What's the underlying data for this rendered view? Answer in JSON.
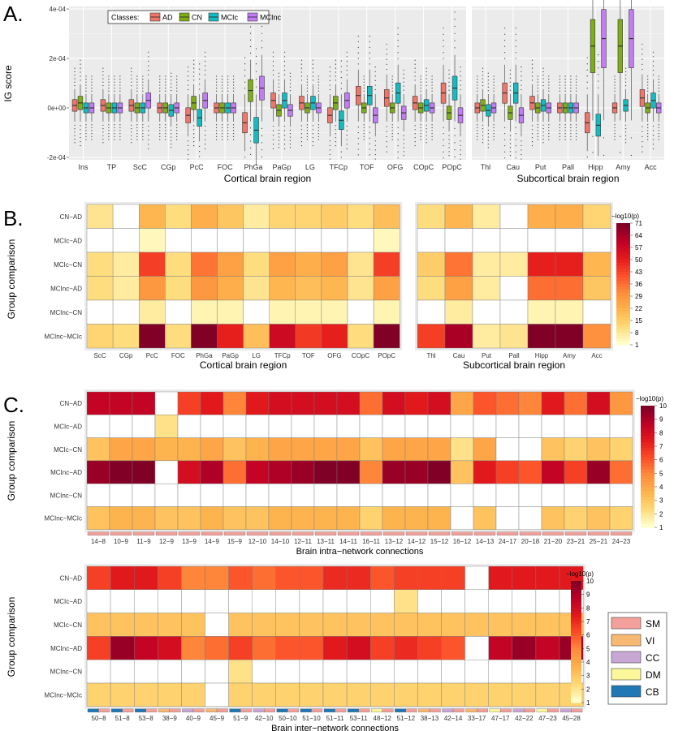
{
  "panel_labels": [
    "A.",
    "B.",
    "C."
  ],
  "chart_data": [
    {
      "type": "boxplot",
      "title": "",
      "ylabel": "IG score",
      "legend": {
        "title": "Classes:",
        "entries": [
          "AD",
          "CN",
          "MCIc",
          "MCInc"
        ],
        "colors": [
          "#f0766c",
          "#7ead17",
          "#13bcc2",
          "#c37cf6"
        ],
        "placement": "top-left"
      },
      "yticks": [
        "-2e-04",
        "0e+00",
        "2e-04",
        "4e-04"
      ],
      "ylim": [
        -0.00021,
        0.00041
      ],
      "cortical": {
        "xlabel": "Cortical brain region",
        "categories": [
          "Ins",
          "TP",
          "ScC",
          "CGp",
          "PcC",
          "FOC",
          "PhGa",
          "PaGp",
          "LG",
          "TFCp",
          "TOF",
          "OFG",
          "COpC",
          "POpC"
        ],
        "medians": [
          [
            1e-05,
            2e-05,
            0.0,
            0.0
          ],
          [
            1e-05,
            0.0,
            0.0,
            0.0
          ],
          [
            1e-05,
            0.0,
            0.0,
            3e-05
          ],
          [
            0.0,
            0.0,
            -1e-05,
            0.0
          ],
          [
            -3e-05,
            2e-05,
            -4e-05,
            3e-05
          ],
          [
            0.0,
            0.0,
            0.0,
            0.0
          ],
          [
            -6e-05,
            7e-05,
            -9e-05,
            8e-05
          ],
          [
            3e-05,
            -1e-05,
            3e-05,
            -1e-05
          ],
          [
            2e-05,
            0.0,
            2e-05,
            0.0
          ],
          [
            -3e-05,
            2e-05,
            -5e-05,
            3e-05
          ],
          [
            5e-05,
            0.0,
            5e-05,
            -3e-05
          ],
          [
            4e-05,
            0.0,
            6e-05,
            -2e-05
          ],
          [
            2e-05,
            0.0,
            1e-05,
            0.0
          ],
          [
            6e-05,
            -2e-05,
            8e-05,
            -3e-05
          ]
        ]
      },
      "subcortical": {
        "xlabel": "Subcortical brain region",
        "categories": [
          "Thl",
          "Cau",
          "Put",
          "Pall",
          "Hipp",
          "Amy",
          "Acc"
        ],
        "medians": [
          [
            0.0,
            1e-05,
            -1e-05,
            0.0
          ],
          [
            6e-05,
            -2e-05,
            6e-05,
            -3e-05
          ],
          [
            2e-05,
            0.0,
            1e-05,
            0.0
          ],
          [
            0.0,
            0.0,
            0.0,
            0.0
          ],
          [
            -6e-05,
            0.00025,
            -7e-05,
            0.00028
          ],
          [
            0.0,
            0.00025,
            1e-05,
            0.00028
          ],
          [
            4e-05,
            0.0,
            3e-05,
            0.0
          ]
        ]
      }
    },
    {
      "type": "heatmap",
      "ylabel": "Group comparison",
      "rows": [
        "CN−AD",
        "MCIc−AD",
        "MCIc−CN",
        "MCInc−AD",
        "MCInc−CN",
        "MCInc−MCIc"
      ],
      "colorbar": {
        "title": "−log10(p)",
        "ticks": [
          "71",
          "64",
          "57",
          "50",
          "43",
          "36",
          "29",
          "22",
          "15",
          "8",
          "1"
        ],
        "range": [
          1,
          71
        ]
      },
      "cortical": {
        "xlabel": "Cortical brain region",
        "columns": [
          "ScC",
          "CGp",
          "PcC",
          "FOC",
          "PhGa",
          "PaGp",
          "LG",
          "TFCp",
          "TOF",
          "OFG",
          "COpC",
          "POpC"
        ],
        "values": [
          [
            8,
            0,
            20,
            10,
            22,
            16,
            6,
            12,
            12,
            14,
            10,
            18
          ],
          [
            0,
            0,
            3,
            0,
            0,
            0,
            0,
            0,
            0,
            0,
            0,
            3
          ],
          [
            10,
            6,
            44,
            10,
            35,
            26,
            10,
            26,
            22,
            26,
            8,
            44
          ],
          [
            10,
            6,
            28,
            10,
            28,
            22,
            8,
            20,
            18,
            20,
            8,
            26
          ],
          [
            0,
            0,
            6,
            0,
            4,
            4,
            0,
            4,
            4,
            4,
            0,
            4
          ],
          [
            12,
            10,
            71,
            10,
            71,
            50,
            18,
            57,
            45,
            50,
            10,
            71
          ]
        ]
      },
      "subcortical": {
        "xlabel": "Subcortical brain region",
        "columns": [
          "Thl",
          "Cau",
          "Put",
          "Pall",
          "Hipp",
          "Amy",
          "Acc"
        ],
        "values": [
          [
            10,
            20,
            6,
            0,
            22,
            22,
            12
          ],
          [
            0,
            0,
            0,
            0,
            0,
            0,
            0
          ],
          [
            14,
            35,
            6,
            6,
            50,
            50,
            20
          ],
          [
            10,
            26,
            6,
            0,
            36,
            36,
            16
          ],
          [
            0,
            6,
            0,
            0,
            4,
            4,
            0
          ],
          [
            44,
            64,
            6,
            8,
            71,
            71,
            30
          ]
        ]
      }
    },
    {
      "type": "heatmap",
      "xlabel": "Brain intra−network connections",
      "ylabel": "Group comparison",
      "rows": [
        "CN−AD",
        "MCIc−AD",
        "MCIc−CN",
        "MCInc−AD",
        "MCInc−CN",
        "MCInc−MCIc"
      ],
      "columns": [
        "14−8",
        "10−9",
        "11−9",
        "12−9",
        "13−9",
        "14−9",
        "15−9",
        "12−10",
        "14−10",
        "12−11",
        "13−11",
        "14−11",
        "16−11",
        "13−12",
        "14−12",
        "15−12",
        "16−12",
        "14−13",
        "24−17",
        "20−18",
        "21−20",
        "23−21",
        "25−21",
        "24−23"
      ],
      "column_networks": [
        "SM",
        "SM",
        "SM",
        "SM",
        "SM",
        "SM",
        "SM",
        "SM",
        "SM",
        "SM",
        "SM",
        "SM",
        "SM",
        "SM",
        "SM",
        "SM",
        "SM",
        "SM",
        "SM",
        "SM",
        "SM",
        "SM",
        "SM",
        "SM"
      ],
      "colorbar": {
        "title": "−log10(p)",
        "ticks": [
          "10",
          "9",
          "8",
          "7",
          "6",
          "5",
          "4",
          "3",
          "2",
          "1"
        ],
        "range": [
          1,
          10
        ]
      },
      "values": [
        [
          8.5,
          8.5,
          8.5,
          0,
          6.5,
          7.5,
          5,
          7.5,
          8,
          8,
          8,
          8,
          5.5,
          8,
          7.5,
          8,
          4,
          6,
          5.5,
          5,
          7.5,
          5.5,
          8,
          4.5
        ],
        [
          0,
          0,
          0,
          2,
          0,
          0,
          0,
          0,
          0,
          0,
          0,
          0,
          0,
          0,
          0,
          0,
          0,
          0,
          0,
          0,
          0,
          0,
          0,
          0
        ],
        [
          3,
          4,
          4,
          3.5,
          3.5,
          4,
          3,
          3.5,
          4,
          4,
          4,
          4,
          3,
          4,
          4,
          4,
          2,
          4,
          0,
          0,
          3,
          2.5,
          3,
          2.5
        ],
        [
          9.5,
          10,
          10,
          0,
          8,
          9,
          5.5,
          8.5,
          9,
          9.5,
          10,
          10,
          5,
          9.5,
          9.5,
          10,
          3,
          7.5,
          6.5,
          6,
          8.5,
          6.5,
          9.5,
          5.5
        ],
        [
          0,
          0,
          0,
          0,
          0,
          0,
          0,
          0,
          0,
          0,
          0,
          0,
          0,
          0,
          0,
          0,
          0,
          0,
          0,
          0,
          0,
          0,
          0,
          0
        ],
        [
          3,
          3.5,
          3.5,
          3,
          3,
          3.5,
          3,
          3,
          3.5,
          3.5,
          3.5,
          3.5,
          2.5,
          3.5,
          3.5,
          3.5,
          0,
          3,
          0,
          0,
          3,
          2.5,
          3,
          2.5
        ]
      ]
    },
    {
      "type": "heatmap",
      "xlabel": "Brain inter−network connections",
      "ylabel": "Group comparison",
      "rows": [
        "CN−AD",
        "MCIc−AD",
        "MCIc−CN",
        "MCInc−AD",
        "MCInc−CN",
        "MCInc−MCIc"
      ],
      "columns": [
        "50−8",
        "51−8",
        "53−8",
        "38−9",
        "40−9",
        "45−9",
        "51−9",
        "42−10",
        "50−10",
        "51−10",
        "51−11",
        "53−11",
        "48−12",
        "51−12",
        "38−13",
        "42−14",
        "33−17",
        "47−17",
        "42−22",
        "47−23",
        "45−28"
      ],
      "column_networks": [
        [
          "CB",
          "SM"
        ],
        [
          "CB",
          "SM"
        ],
        [
          "CB",
          "SM"
        ],
        [
          "VI",
          "SM"
        ],
        [
          "CC",
          "SM"
        ],
        [
          "VI",
          "SM"
        ],
        [
          "CB",
          "SM"
        ],
        [
          "CC",
          "SM"
        ],
        [
          "CB",
          "SM"
        ],
        [
          "CB",
          "SM"
        ],
        [
          "CB",
          "SM"
        ],
        [
          "CB",
          "SM"
        ],
        [
          "DM",
          "SM"
        ],
        [
          "CB",
          "SM"
        ],
        [
          "VI",
          "SM"
        ],
        [
          "CC",
          "SM"
        ],
        [
          "VI",
          "SM"
        ],
        [
          "DM",
          "SM"
        ],
        [
          "CC",
          "SM"
        ],
        [
          "DM",
          "SM"
        ],
        [
          "CC",
          "SM"
        ]
      ],
      "colorbar": {
        "title": "−log10(p)",
        "ticks": [
          "10",
          "9",
          "8",
          "7",
          "6",
          "5",
          "4",
          "3",
          "2",
          "1"
        ],
        "range": [
          1,
          10
        ]
      },
      "values": [
        [
          6.5,
          7.5,
          7.5,
          6.5,
          5,
          5,
          6,
          5.5,
          6,
          6,
          7,
          7,
          6,
          6.5,
          6.5,
          6.5,
          0,
          7.5,
          7.5,
          7.5,
          7.5
        ],
        [
          0,
          0,
          0,
          0,
          0,
          0,
          0,
          0,
          0,
          0,
          0,
          0,
          0,
          2,
          0,
          0,
          0,
          0,
          0,
          0,
          0
        ],
        [
          3,
          3,
          3,
          3,
          3,
          0,
          3,
          3,
          3,
          3,
          3,
          3,
          3,
          3,
          3,
          3,
          3,
          3,
          3,
          3,
          3
        ],
        [
          6.5,
          9.5,
          8.5,
          8,
          5,
          5.5,
          6.5,
          5.5,
          6,
          6,
          7.5,
          8,
          6.5,
          7,
          6.5,
          6,
          0,
          8.5,
          9.5,
          8.5,
          9.5
        ],
        [
          0,
          0,
          0,
          0,
          0,
          0,
          2,
          0,
          0,
          0,
          0,
          0,
          0,
          0,
          0,
          0,
          0,
          0,
          0,
          0,
          0
        ],
        [
          2.5,
          2.5,
          2.5,
          2.5,
          2.5,
          0,
          2.5,
          2.5,
          2.5,
          2.5,
          2.5,
          2.5,
          2.5,
          2.5,
          2.5,
          2.5,
          2.5,
          2.5,
          2.5,
          2.5,
          2.5
        ]
      ]
    }
  ],
  "network_legend": {
    "entries": [
      "SM",
      "VI",
      "CC",
      "DM",
      "CB"
    ],
    "colors": [
      "#f4a09a",
      "#f7b871",
      "#c8a7d4",
      "#fbf79a",
      "#1f77b4"
    ]
  }
}
